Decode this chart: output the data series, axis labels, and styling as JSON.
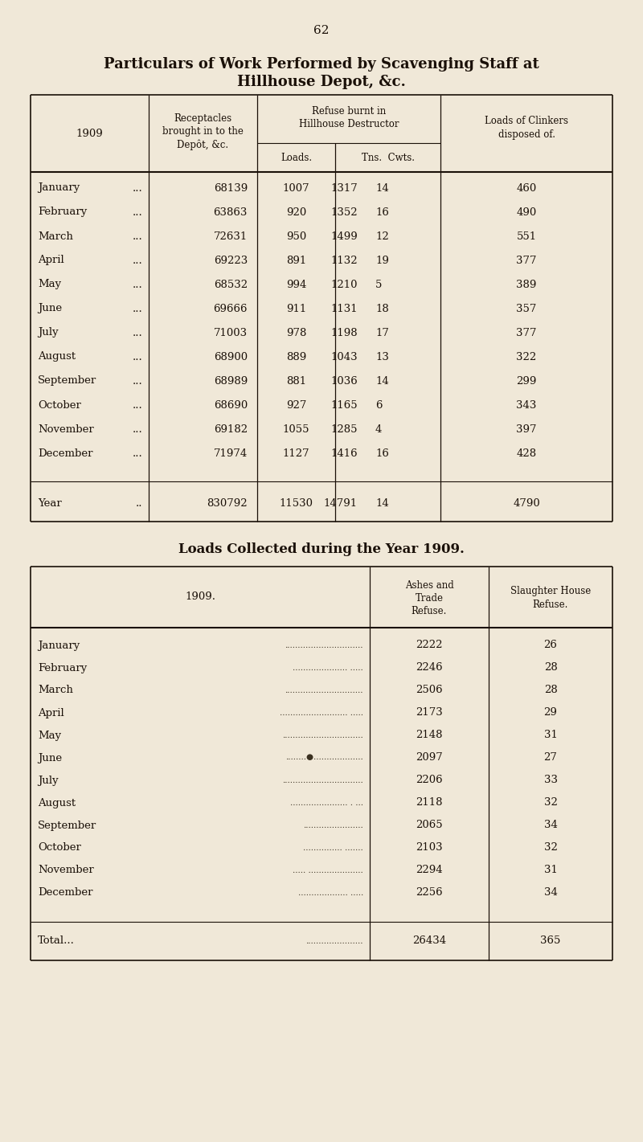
{
  "bg_color": "#f0e8d8",
  "text_color": "#1a1008",
  "page_number": "62",
  "title1": "Particulars of Work Performed by Scavenging Staff at",
  "title2": "Hillhouse Depot, &c.",
  "table1_months": [
    "January",
    "February",
    "March",
    "April",
    "May",
    "June",
    "July",
    "August",
    "September",
    "October",
    "November",
    "December"
  ],
  "table1_month_dots": [
    "...",
    "...",
    "...",
    "...",
    "...",
    "...",
    "...",
    "...",
    "...",
    "...",
    "...",
    "..."
  ],
  "table1_receptacles": [
    "68139",
    "63863",
    "72631",
    "69223",
    "68532",
    "69666",
    "71003",
    "68900",
    "68989",
    "68690",
    "69182",
    "71974"
  ],
  "table1_loads": [
    "1007",
    "920",
    "950",
    "891",
    "994",
    "911",
    "978",
    "889",
    "881",
    "927",
    "1055",
    "1127"
  ],
  "table1_tns": [
    "1317",
    "1352",
    "1499",
    "1132",
    "1210",
    "1131",
    "1198",
    "1043",
    "1036",
    "1165",
    "1285",
    "1416"
  ],
  "table1_cwts": [
    "14",
    "16",
    "12",
    "19",
    "5",
    "18",
    "17",
    "13",
    "14",
    "6",
    "4",
    "16"
  ],
  "table1_clinkers": [
    "460",
    "490",
    "551",
    "377",
    "389",
    "357",
    "377",
    "322",
    "299",
    "343",
    "397",
    "428"
  ],
  "table1_year_label": "Year",
  "table1_year_dots": "..",
  "table1_year_receptacles": "830792",
  "table1_year_loads": "11530",
  "table1_year_tns": "14791",
  "table1_year_cwts": "14",
  "table1_year_clinkers": "4790",
  "title3": "Loads Collected during the Year 1909.",
  "table2_months": [
    "January",
    "February",
    "March",
    "April",
    "May",
    "June",
    "July",
    "August",
    "September",
    "October",
    "November",
    "December"
  ],
  "table2_month_dots": [
    "..............................",
    "..................... .....",
    "..............................",
    ".......................... .....",
    "...............................",
    "........●...................",
    "...............................",
    "...................... . ...",
    ".......................",
    "............... .......",
    "..... .....................",
    "................... ....."
  ],
  "table2_ashes": [
    "2222",
    "2246",
    "2506",
    "2173",
    "2148",
    "2097",
    "2206",
    "2118",
    "2065",
    "2103",
    "2294",
    "2256"
  ],
  "table2_slaughter": [
    "26",
    "28",
    "28",
    "29",
    "31",
    "27",
    "33",
    "32",
    "34",
    "32",
    "31",
    "34"
  ],
  "table2_total_label": "Total...",
  "table2_total_dots": "......................",
  "table2_total_ashes": "26434",
  "table2_total_slaughter": "365"
}
